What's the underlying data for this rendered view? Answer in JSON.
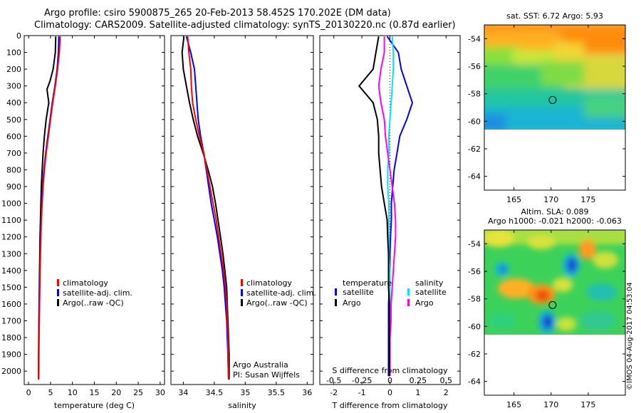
{
  "header": {
    "line1": "Argo profile: csiro 5900875_265 20-Feb-2013 58.452S 170.202E (DM data)",
    "line2": "Climatology: CARS2009. Satellite-adjusted climatology: synTS_20130220.nc (0.87d earlier)"
  },
  "watermark": "©IMOS 04-Aug-2017 04:53:04",
  "colors": {
    "climatology": "#ff0000",
    "satellite": "#0000ff",
    "argo": "#000000",
    "sal_satellite": "#00e5ff",
    "sal_argo": "#ff00ff"
  },
  "chart_data": [
    {
      "type": "line",
      "name": "temperature-profile",
      "xlabel": "temperature (deg C)",
      "ylabel": "",
      "xlim": [
        -1,
        31
      ],
      "ylim": [
        2080,
        0
      ],
      "xticks": [
        0,
        5,
        10,
        15,
        20,
        25,
        30
      ],
      "yticks": [
        0,
        100,
        200,
        300,
        400,
        500,
        600,
        700,
        800,
        900,
        1000,
        1100,
        1200,
        1300,
        1400,
        1500,
        1600,
        1700,
        1800,
        1900,
        2000
      ],
      "legend": [
        "climatology",
        "satellite-adj. clim.",
        "Argo(..raw -QC)"
      ],
      "series": [
        {
          "name": "climatology",
          "color": "#ff0000",
          "x": [
            7.2,
            7.0,
            6.6,
            6.1,
            5.5,
            5.0,
            4.5,
            4.0,
            3.6,
            3.3,
            3.1,
            2.9,
            2.8,
            2.7,
            2.6,
            2.55,
            2.5,
            2.45,
            2.4,
            2.35,
            2.3
          ],
          "y": [
            5,
            100,
            200,
            300,
            400,
            500,
            600,
            700,
            800,
            900,
            1000,
            1100,
            1200,
            1300,
            1400,
            1500,
            1600,
            1700,
            1800,
            1900,
            2050
          ]
        },
        {
          "name": "satellite-adj. clim.",
          "color": "#0000ff",
          "x": [
            6.9,
            6.8,
            6.5,
            6.0,
            5.4,
            4.9,
            4.4,
            3.9,
            3.5,
            3.2,
            3.0,
            2.85,
            2.75,
            2.65,
            2.55,
            2.5,
            2.45,
            2.4,
            2.35,
            2.3,
            2.25
          ],
          "y": [
            5,
            100,
            200,
            300,
            400,
            500,
            600,
            700,
            800,
            900,
            1000,
            1100,
            1200,
            1300,
            1400,
            1500,
            1600,
            1700,
            1800,
            1900,
            2050
          ]
        },
        {
          "name": "Argo(..raw -QC)",
          "color": "#000000",
          "x": [
            6.2,
            6.1,
            5.6,
            4.9,
            4.2,
            4.6,
            4.0,
            3.6,
            3.3,
            3.1,
            2.9,
            2.8,
            2.7,
            2.6,
            2.55,
            2.5,
            2.45,
            2.4,
            2.35,
            2.3,
            2.25
          ],
          "y": [
            5,
            100,
            200,
            270,
            320,
            400,
            500,
            600,
            700,
            800,
            900,
            1000,
            1100,
            1200,
            1300,
            1400,
            1500,
            1600,
            1700,
            1850,
            2030
          ]
        }
      ]
    },
    {
      "type": "line",
      "name": "salinity-profile",
      "xlabel": "salinity",
      "xlim": [
        33.8,
        36.1
      ],
      "ylim": [
        2080,
        0
      ],
      "xticks": [
        34,
        34.5,
        35,
        35.5,
        36
      ],
      "xticklabels": [
        "34",
        "34.5",
        "35",
        "35.5",
        "36"
      ],
      "legend": [
        "climatology",
        "satellite-adj. clim.",
        "Argo(..raw -QC)"
      ],
      "annotation": [
        "Argo Australia",
        "PI: Susan Wijffels"
      ],
      "series": [
        {
          "name": "climatology",
          "color": "#ff0000",
          "x": [
            34.07,
            34.09,
            34.12,
            34.13,
            34.15,
            34.2,
            34.26,
            34.33,
            34.38,
            34.43,
            34.48,
            34.53,
            34.57,
            34.61,
            34.65,
            34.68,
            34.7,
            34.71,
            34.72,
            34.72,
            34.73
          ],
          "y": [
            5,
            100,
            200,
            300,
            400,
            500,
            600,
            700,
            800,
            900,
            1000,
            1100,
            1200,
            1300,
            1400,
            1500,
            1600,
            1700,
            1800,
            1900,
            2050
          ]
        },
        {
          "name": "satellite-adj. clim.",
          "color": "#0000ff",
          "x": [
            34.05,
            34.12,
            34.18,
            34.2,
            34.22,
            34.24,
            34.28,
            34.33,
            34.37,
            34.41,
            34.45,
            34.5,
            34.55,
            34.59,
            34.63,
            34.66,
            34.68,
            34.7,
            34.71,
            34.72,
            34.73
          ],
          "y": [
            5,
            100,
            200,
            300,
            400,
            500,
            600,
            700,
            800,
            900,
            1000,
            1100,
            1200,
            1300,
            1400,
            1500,
            1600,
            1700,
            1800,
            1900,
            2050
          ]
        },
        {
          "name": "Argo(..raw -QC)",
          "color": "#000000",
          "x": [
            34.01,
            33.98,
            34.0,
            34.05,
            34.1,
            34.16,
            34.23,
            34.32,
            34.4,
            34.47,
            34.52,
            34.56,
            34.6,
            34.64,
            34.67,
            34.7,
            34.71,
            34.72,
            34.73,
            34.74,
            34.74
          ],
          "y": [
            5,
            100,
            200,
            300,
            400,
            500,
            600,
            700,
            800,
            900,
            1000,
            1100,
            1200,
            1300,
            1400,
            1500,
            1600,
            1700,
            1800,
            1900,
            2050
          ]
        }
      ]
    },
    {
      "type": "line",
      "name": "difference-from-climatology",
      "xlabel": "T difference from climatology",
      "xlabel2": "S difference from climatology",
      "xlim": [
        -2.5,
        2.5
      ],
      "ylim": [
        2080,
        0
      ],
      "xticks": [
        -2,
        -1,
        0,
        1,
        2
      ],
      "xticks2": [
        -0.5,
        -0.25,
        0,
        0.25,
        0.5
      ],
      "legend_temperature": {
        "title": "temperature",
        "items": [
          "satellite",
          "Argo"
        ]
      },
      "legend_salinity": {
        "title": "salinity",
        "items": [
          "satellite",
          "Argo"
        ]
      },
      "series": [
        {
          "name": "temperature satellite",
          "color": "#0000ff",
          "x": [
            -0.1,
            0.3,
            0.4,
            0.6,
            0.8,
            0.6,
            0.35,
            0.25,
            0.15,
            0.1,
            0.05,
            0.05,
            0.02,
            0.0,
            0.0,
            -0.02,
            -0.05,
            -0.05,
            -0.05,
            -0.05
          ],
          "y": [
            5,
            100,
            200,
            300,
            400,
            500,
            600,
            700,
            800,
            900,
            1000,
            1100,
            1200,
            1300,
            1400,
            1500,
            1600,
            1700,
            1800,
            2030
          ]
        },
        {
          "name": "temperature Argo",
          "color": "#000000",
          "x": [
            -0.4,
            -0.5,
            -0.6,
            -1.1,
            -0.6,
            -0.45,
            -0.4,
            -0.4,
            -0.35,
            -0.3,
            -0.2,
            -0.1,
            -0.08,
            -0.05,
            -0.05,
            -0.05,
            -0.02,
            -0.02,
            -0.02,
            -0.02
          ],
          "y": [
            5,
            100,
            200,
            300,
            400,
            500,
            600,
            700,
            800,
            900,
            1000,
            1100,
            1200,
            1300,
            1400,
            1500,
            1600,
            1700,
            1800,
            2030
          ]
        },
        {
          "name": "salinity satellite",
          "color": "#00e5ff",
          "x": [
            0.02,
            0.03,
            0.03,
            0.02,
            0.01,
            0.0,
            -0.01,
            -0.01,
            -0.02,
            -0.02,
            -0.01,
            -0.01,
            -0.01,
            -0.01,
            0.0,
            0.0,
            0.0,
            0.0,
            0.0,
            0.0
          ],
          "y": [
            5,
            100,
            200,
            300,
            400,
            500,
            600,
            700,
            800,
            900,
            1000,
            1100,
            1200,
            1300,
            1400,
            1500,
            1600,
            1700,
            1800,
            2030
          ]
        },
        {
          "name": "salinity Argo",
          "color": "#ff00ff",
          "x": [
            -0.05,
            -0.05,
            -0.08,
            -0.1,
            -0.08,
            -0.05,
            -0.04,
            -0.02,
            0.0,
            0.02,
            0.04,
            0.05,
            0.05,
            0.04,
            0.03,
            0.02,
            0.01,
            0.01,
            0.0,
            0.0
          ],
          "y": [
            5,
            100,
            200,
            300,
            400,
            500,
            600,
            700,
            800,
            900,
            1000,
            1100,
            1200,
            1300,
            1400,
            1500,
            1600,
            1700,
            1800,
            2030
          ]
        }
      ]
    },
    {
      "type": "heatmap",
      "name": "sst-map",
      "title": "sat. SST: 6.72 Argo: 5.93",
      "xticks": [
        165,
        170,
        175
      ],
      "yticks": [
        -54,
        -56,
        -58,
        -60,
        -62,
        -64
      ],
      "xlim": [
        161,
        180
      ],
      "ylim": [
        -65,
        -53
      ],
      "marker": {
        "lon": 170.2,
        "lat": -58.45
      }
    },
    {
      "type": "heatmap",
      "name": "sla-map",
      "title": "Altim. SLA: 0.089",
      "subtitle": "Argo h1000: -0.021 h2000: -0.063",
      "xticks": [
        165,
        170,
        175
      ],
      "yticks": [
        -54,
        -56,
        -58,
        -60,
        -62,
        -64
      ],
      "xlim": [
        161,
        180
      ],
      "ylim": [
        -65,
        -53
      ],
      "marker": {
        "lon": 170.2,
        "lat": -58.45
      }
    }
  ]
}
